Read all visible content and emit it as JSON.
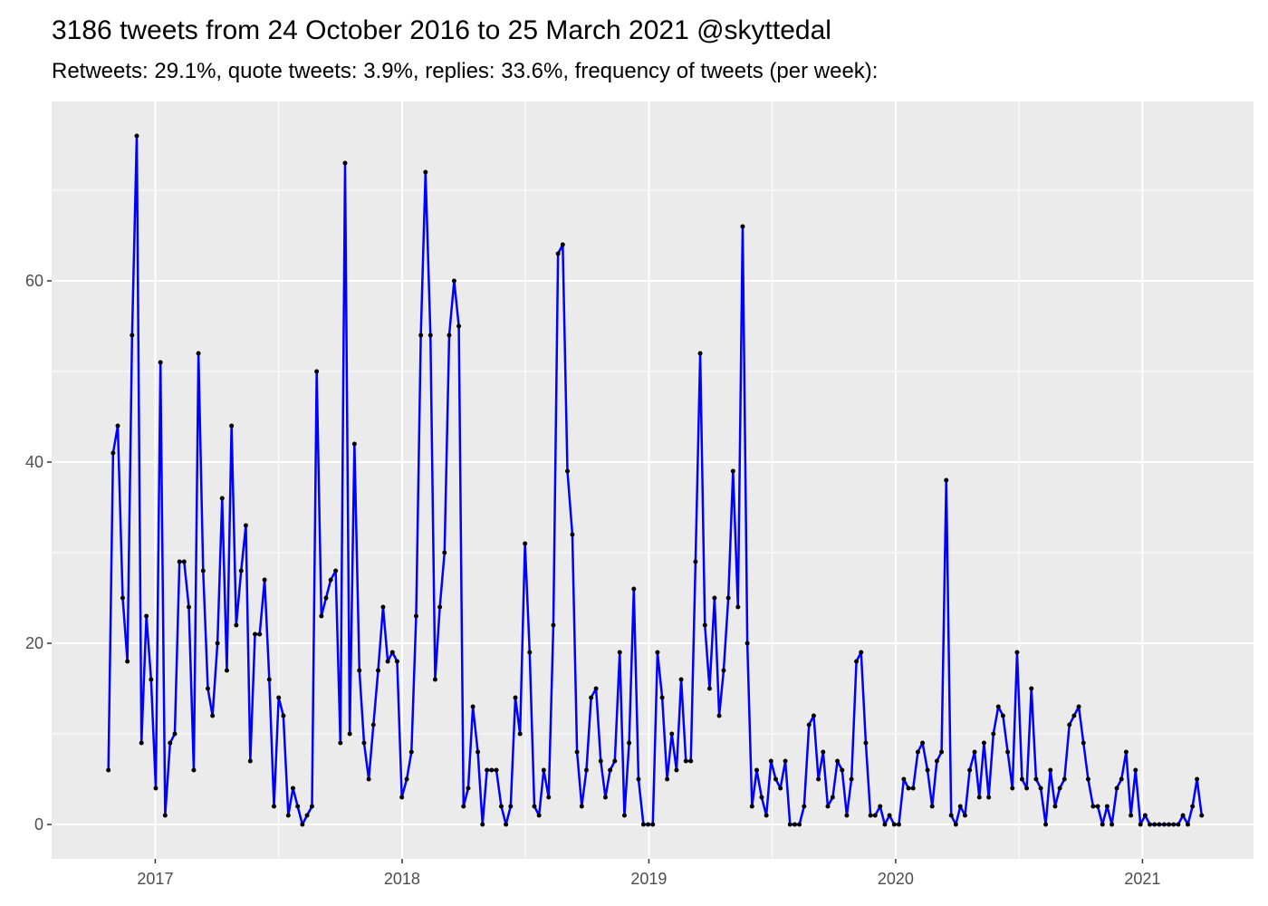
{
  "chart_data": {
    "type": "line",
    "title": "3186 tweets from 24 October 2016 to 25 March 2021 @skyttedal",
    "subtitle": "Retweets: 29.1%, quote tweets: 3.9%, replies: 33.6%, frequency of tweets (per week):",
    "x": [
      2016.81,
      2016.829,
      2016.848,
      2016.868,
      2016.887,
      2016.906,
      2016.925,
      2016.944,
      2016.964,
      2016.983,
      2017.002,
      2017.021,
      2017.04,
      2017.06,
      2017.079,
      2017.098,
      2017.117,
      2017.136,
      2017.156,
      2017.175,
      2017.194,
      2017.213,
      2017.232,
      2017.252,
      2017.271,
      2017.29,
      2017.309,
      2017.328,
      2017.348,
      2017.367,
      2017.385,
      2017.404,
      2017.423,
      2017.443,
      2017.462,
      2017.481,
      2017.5,
      2017.519,
      2017.539,
      2017.558,
      2017.577,
      2017.596,
      2017.615,
      2017.635,
      2017.654,
      2017.673,
      2017.692,
      2017.711,
      2017.731,
      2017.75,
      2017.769,
      2017.788,
      2017.807,
      2017.827,
      2017.846,
      2017.865,
      2017.884,
      2017.903,
      2017.923,
      2017.942,
      2017.961,
      2017.98,
      2017.999,
      2018.019,
      2018.038,
      2018.057,
      2018.076,
      2018.095,
      2018.115,
      2018.134,
      2018.153,
      2018.172,
      2018.191,
      2018.211,
      2018.23,
      2018.249,
      2018.268,
      2018.287,
      2018.307,
      2018.326,
      2018.344,
      2018.363,
      2018.382,
      2018.402,
      2018.421,
      2018.44,
      2018.459,
      2018.478,
      2018.498,
      2018.517,
      2018.536,
      2018.555,
      2018.574,
      2018.594,
      2018.613,
      2018.632,
      2018.651,
      2018.67,
      2018.69,
      2018.709,
      2018.728,
      2018.747,
      2018.766,
      2018.786,
      2018.805,
      2018.824,
      2018.843,
      2018.862,
      2018.882,
      2018.901,
      2018.92,
      2018.939,
      2018.958,
      2018.978,
      2018.997,
      2019.016,
      2019.035,
      2019.054,
      2019.074,
      2019.093,
      2019.112,
      2019.131,
      2019.15,
      2019.17,
      2019.189,
      2019.208,
      2019.227,
      2019.246,
      2019.266,
      2019.285,
      2019.303,
      2019.322,
      2019.341,
      2019.361,
      2019.38,
      2019.399,
      2019.418,
      2019.437,
      2019.457,
      2019.476,
      2019.495,
      2019.514,
      2019.533,
      2019.553,
      2019.572,
      2019.591,
      2019.61,
      2019.629,
      2019.649,
      2019.668,
      2019.687,
      2019.706,
      2019.725,
      2019.745,
      2019.764,
      2019.783,
      2019.802,
      2019.821,
      2019.841,
      2019.86,
      2019.879,
      2019.898,
      2019.917,
      2019.937,
      2019.956,
      2019.975,
      2019.994,
      2020.013,
      2020.033,
      2020.052,
      2020.071,
      2020.09,
      2020.109,
      2020.129,
      2020.148,
      2020.167,
      2020.186,
      2020.205,
      2020.225,
      2020.244,
      2020.262,
      2020.281,
      2020.3,
      2020.32,
      2020.339,
      2020.358,
      2020.377,
      2020.396,
      2020.416,
      2020.435,
      2020.454,
      2020.473,
      2020.492,
      2020.512,
      2020.531,
      2020.55,
      2020.569,
      2020.588,
      2020.608,
      2020.627,
      2020.646,
      2020.665,
      2020.684,
      2020.704,
      2020.723,
      2020.742,
      2020.761,
      2020.78,
      2020.8,
      2020.819,
      2020.838,
      2020.857,
      2020.876,
      2020.896,
      2020.915,
      2020.934,
      2020.953,
      2020.972,
      2020.992,
      2021.011,
      2021.03,
      2021.049,
      2021.068,
      2021.088,
      2021.107,
      2021.126,
      2021.145,
      2021.164,
      2021.184,
      2021.203,
      2021.221,
      2021.24
    ],
    "series": [
      {
        "color": "#0000ff",
        "marker_color": "#000000",
        "values": [
          6,
          41,
          44,
          25,
          18,
          54,
          76,
          9,
          23,
          16,
          4,
          51,
          1,
          9,
          10,
          29,
          29,
          24,
          6,
          52,
          28,
          15,
          12,
          20,
          36,
          17,
          44,
          22,
          28,
          33,
          7,
          21,
          21,
          27,
          16,
          2,
          14,
          12,
          1,
          4,
          2,
          0,
          1,
          2,
          50,
          23,
          25,
          27,
          28,
          9,
          73,
          10,
          42,
          17,
          9,
          5,
          11,
          17,
          24,
          18,
          19,
          18,
          3,
          5,
          8,
          23,
          54,
          72,
          54,
          16,
          24,
          30,
          54,
          60,
          55,
          2,
          4,
          13,
          8,
          0,
          6,
          6,
          6,
          2,
          0,
          2,
          14,
          10,
          31,
          19,
          2,
          1,
          6,
          3,
          22,
          63,
          64,
          39,
          32,
          8,
          2,
          6,
          14,
          15,
          7,
          3,
          6,
          7,
          19,
          1,
          9,
          26,
          5,
          0,
          0,
          0,
          19,
          14,
          5,
          10,
          6,
          16,
          7,
          7,
          29,
          52,
          22,
          15,
          25,
          12,
          17,
          25,
          39,
          24,
          66,
          20,
          2,
          6,
          3,
          1,
          7,
          5,
          4,
          7,
          0,
          0,
          0,
          2,
          11,
          12,
          5,
          8,
          2,
          3,
          7,
          6,
          1,
          5,
          18,
          19,
          9,
          1,
          1,
          2,
          0,
          1,
          0,
          0,
          5,
          4,
          4,
          8,
          9,
          6,
          2,
          7,
          8,
          38,
          1,
          0,
          2,
          1,
          6,
          8,
          3,
          9,
          3,
          10,
          13,
          12,
          8,
          4,
          19,
          5,
          4,
          15,
          5,
          4,
          0,
          6,
          2,
          4,
          5,
          11,
          12,
          13,
          9,
          5,
          2,
          2,
          0,
          2,
          0,
          4,
          5,
          8,
          1,
          6,
          0,
          1,
          0,
          0,
          0,
          0,
          0,
          0,
          0,
          1,
          0,
          2,
          5,
          1
        ]
      }
    ],
    "xlim": [
      2016.58,
      2021.45
    ],
    "ylim": [
      -3.8,
      79.8
    ],
    "xticks": [
      2017,
      2018,
      2019,
      2020,
      2021
    ],
    "yticks": [
      0,
      20,
      40,
      60
    ],
    "minor_xticks": [
      2017.5,
      2018.5,
      2019.5,
      2020.5
    ],
    "minor_yticks": [
      10,
      30,
      50,
      70
    ],
    "grid": true,
    "panel_color": "#ebebeb"
  }
}
